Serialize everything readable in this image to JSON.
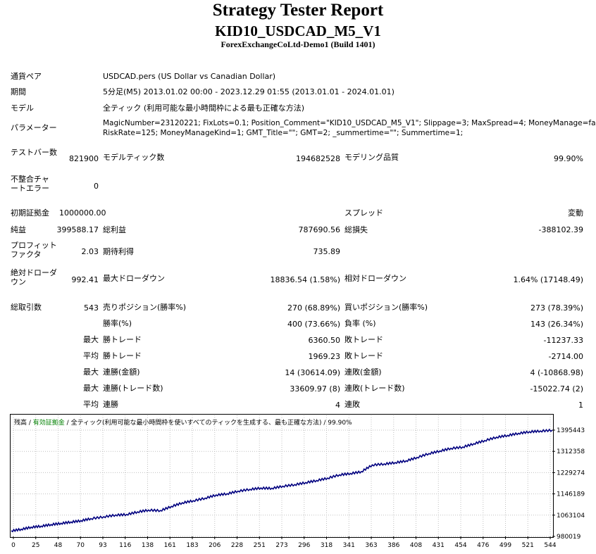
{
  "header": {
    "title": "Strategy Tester Report",
    "ea_name": "KID10_USDCAD_M5_V1",
    "server": "ForexExchangeCoLtd-Demo1 (Build 1401)"
  },
  "settings": {
    "symbol_label": "通貨ペア",
    "symbol_value": "USDCAD.pers (US Dollar vs Canadian Dollar)",
    "period_label": "期間",
    "period_value": "5分足(M5) 2013.01.02 00:00 - 2023.12.29 01:55 (2013.01.01 - 2024.01.01)",
    "model_label": "モデル",
    "model_value": "全ティック (利用可能な最小時間枠による最も正確な方法)",
    "params_label": "パラメーター",
    "params_line1": "MagicNumber=23120221; FixLots=0.1; Position_Comment=\"KID10_USDCAD_M5_V1\"; Slippage=3; MaxSpread=4; MoneyManage=false;",
    "params_line2": "RiskRate=125; MoneyManageKind=1; GMT_Title=\"\"; GMT=2; _summertime=\"\"; Summertime=1;"
  },
  "stats": {
    "bars_label": "テストバー数",
    "bars_value": "821900",
    "ticks_label": "モデルティック数",
    "ticks_value": "194682528",
    "quality_label": "モデリング品質",
    "quality_value": "99.90%",
    "mismatch_label": "不整合チャートエラー",
    "mismatch_value": "0",
    "deposit_label": "初期証拠金",
    "deposit_value": "1000000.00",
    "spread_label": "スプレッド",
    "spread_value": "変動",
    "net_label": "純益",
    "net_value": "399588.17",
    "gross_profit_label": "総利益",
    "gross_profit_value": "787690.56",
    "gross_loss_label": "総損失",
    "gross_loss_value": "-388102.39",
    "pf_label": "プロフィットファクタ",
    "pf_value": "2.03",
    "expected_label": "期待利得",
    "expected_value": "735.89",
    "abs_dd_label": "絶対ドローダウン",
    "abs_dd_value": "992.41",
    "max_dd_label": "最大ドローダウン",
    "max_dd_value": "18836.54 (1.58%)",
    "rel_dd_label": "相対ドローダウン",
    "rel_dd_value": "1.64% (17148.49)",
    "total_trades_label": "総取引数",
    "total_trades_value": "543",
    "short_label": "売りポジション(勝率%)",
    "short_value": "270 (68.89%)",
    "long_label": "買いポジション(勝率%)",
    "long_value": "273 (78.39%)",
    "win_rate_label": "勝率(%)",
    "win_rate_value": "400 (73.66%)",
    "loss_rate_label": "負率 (%)",
    "loss_rate_value": "143 (26.34%)",
    "max_prefix": "最大",
    "avg_prefix": "平均",
    "largest_win_label": "勝トレード",
    "largest_win_value": "6360.50",
    "largest_loss_label": "敗トレード",
    "largest_loss_value": "-11237.33",
    "avg_win_label": "勝トレード",
    "avg_win_value": "1969.23",
    "avg_loss_label": "敗トレード",
    "avg_loss_value": "-2714.00",
    "max_consec_win_label": "連勝(金額)",
    "max_consec_win_value": "14 (30614.09)",
    "max_consec_loss_label": "連敗(金額)",
    "max_consec_loss_value": "4 (-10868.98)",
    "max_consec_profit_label": "連勝(トレード数)",
    "max_consec_profit_value": "33609.97 (8)",
    "max_consec_lossamt_label": "連敗(トレード数)",
    "max_consec_lossamt_value": "-15022.74 (2)",
    "avg_consec_win_label": "連勝",
    "avg_consec_win_value": "4",
    "avg_consec_loss_label": "連敗",
    "avg_consec_loss_value": "1"
  },
  "chart_legend": {
    "balance": "残高",
    "sep1": " / ",
    "equity": "有効証拠金",
    "sep2": " / ",
    "model": "全ティック(利用可能な最小時間枠を使いすべてのティックを生成する、最も正確な方法)",
    "sep3": " / ",
    "quality": "99.90%"
  },
  "colors": {
    "balance_line": "#00007f",
    "equity_label": "#008000",
    "grid": "#c0c0c0"
  },
  "chart_data": {
    "type": "line",
    "title": "",
    "xlabel": "",
    "ylabel": "",
    "x_ticks": [
      "0",
      "25",
      "48",
      "70",
      "93",
      "116",
      "138",
      "161",
      "183",
      "206",
      "228",
      "251",
      "273",
      "296",
      "318",
      "341",
      "363",
      "386",
      "408",
      "431",
      "454",
      "476",
      "499",
      "521",
      "544"
    ],
    "y_ticks": [
      "1395443",
      "1312358",
      "1229274",
      "1146189",
      "1063104",
      "980019"
    ],
    "xlim": [
      0,
      544
    ],
    "ylim": [
      980019,
      1395443
    ],
    "series": [
      {
        "x": [
          0,
          10,
          20,
          30,
          40,
          50,
          60,
          70,
          80,
          93,
          105,
          116,
          127,
          138,
          150,
          161,
          172,
          183,
          195,
          206,
          217,
          228,
          240,
          251,
          262,
          273,
          285,
          296,
          307,
          318,
          330,
          341,
          352,
          363,
          375,
          386,
          397,
          408,
          420,
          431,
          442,
          454,
          465,
          476,
          488,
          499,
          510,
          521,
          532,
          544
        ],
        "values": [
          1002000,
          1008000,
          1016000,
          1020000,
          1026000,
          1031000,
          1036000,
          1041000,
          1049000,
          1056000,
          1063000,
          1065000,
          1075000,
          1082000,
          1080000,
          1096000,
          1110000,
          1118000,
          1128000,
          1140000,
          1145000,
          1155000,
          1162000,
          1167000,
          1166000,
          1174000,
          1180000,
          1188000,
          1196000,
          1205000,
          1218000,
          1223000,
          1230000,
          1256000,
          1260000,
          1265000,
          1272000,
          1285000,
          1300000,
          1310000,
          1320000,
          1325000,
          1338000,
          1350000,
          1363000,
          1370000,
          1378000,
          1384000,
          1387000,
          1390000
        ]
      }
    ],
    "grid": true
  }
}
